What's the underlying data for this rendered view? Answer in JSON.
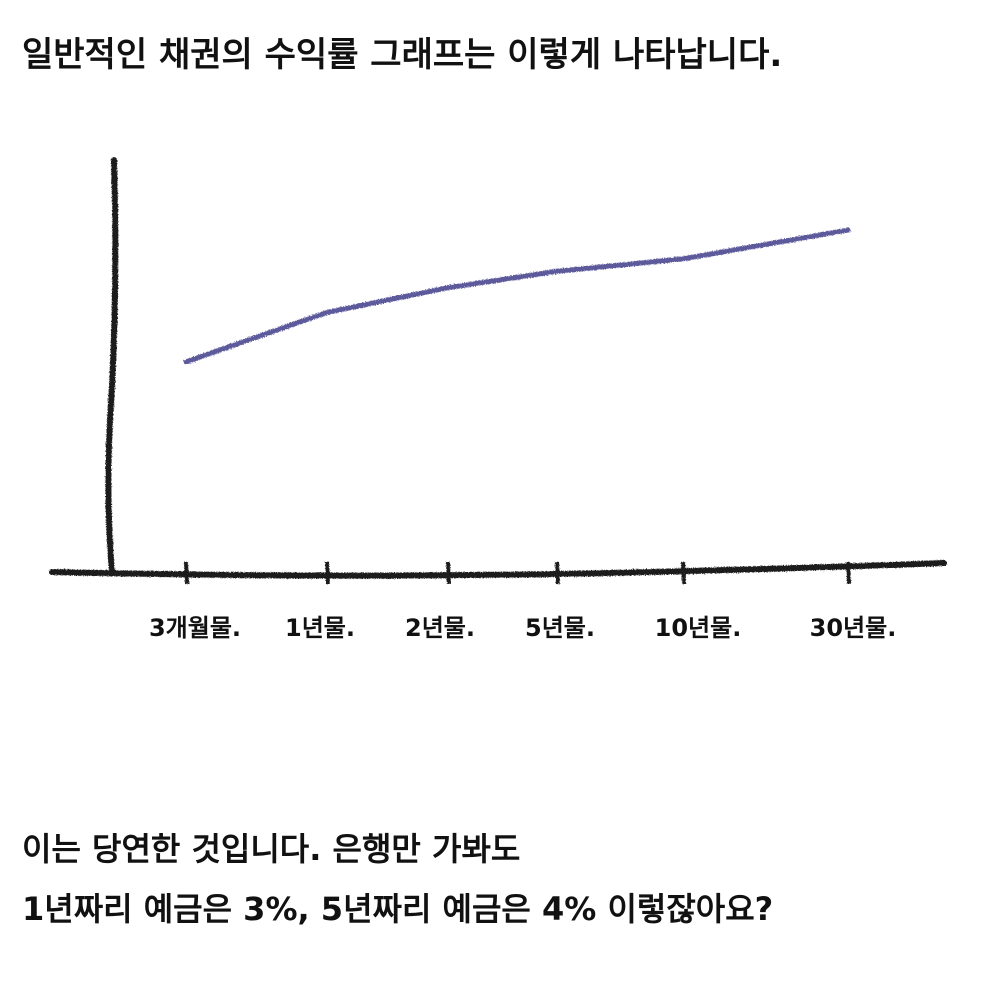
{
  "chart_data": {
    "type": "line",
    "title": "일반적인 채권의 수익률 그래프는 이렇게 나타납니다.",
    "categories": [
      "3개월물.",
      "1년물.",
      "2년물.",
      "5년물.",
      "10년물.",
      "30년물."
    ],
    "values": [
      51,
      63,
      69,
      73,
      76,
      83
    ],
    "color": "#5d5a9c",
    "ylim": [
      0,
      100
    ]
  },
  "body": [
    "이는 당연한 것입니다. 은행만 가봐도",
    "1년짜리 예금은 3%, 5년짜리 예금은 4% 이렇잖아요?"
  ]
}
